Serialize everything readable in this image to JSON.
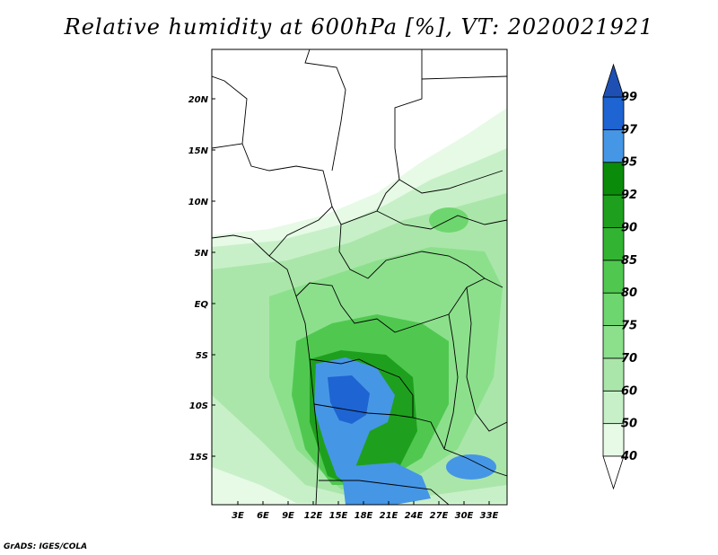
{
  "title": "Relative humidity at 600hPa [%], VT: 2020021921",
  "footer": "GrADS: IGES/COLA",
  "map": {
    "x_ticks": [
      "3E",
      "6E",
      "9E",
      "12E",
      "15E",
      "18E",
      "21E",
      "24E",
      "27E",
      "30E",
      "33E"
    ],
    "y_ticks": [
      "20N",
      "15N",
      "10N",
      "5N",
      "EQ",
      "5S",
      "10S",
      "15S"
    ]
  },
  "colorbar": {
    "levels": [
      "40",
      "50",
      "60",
      "70",
      "75",
      "80",
      "85",
      "90",
      "92",
      "95",
      "97",
      "99"
    ],
    "colors": [
      "#ffffff",
      "#e6fae6",
      "#c8f0c8",
      "#aae6aa",
      "#8ce08c",
      "#6ed66e",
      "#50c850",
      "#32b432",
      "#1ea01e",
      "#0a8c0a",
      "#4696e6",
      "#1e64d2",
      "#1e50b4"
    ]
  }
}
